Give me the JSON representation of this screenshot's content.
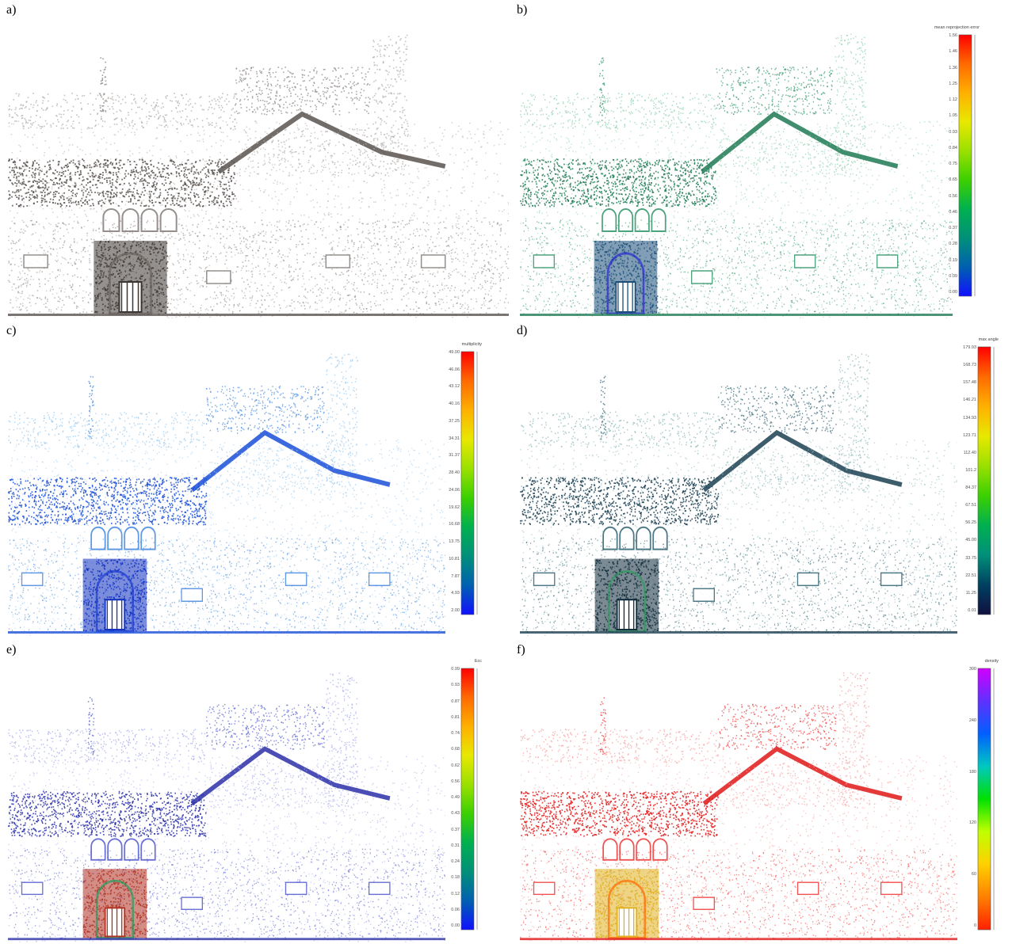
{
  "panels": [
    {
      "id": "a",
      "label": "a)",
      "colormap": "gray",
      "colorbar": null
    },
    {
      "id": "b",
      "label": "b)",
      "colormap": "viridis-like",
      "colorbar": {
        "title": "mean reprojection error",
        "ticks": [
          "1.56",
          "1.46",
          "1.36",
          "1.25",
          "1.12",
          "1.05",
          "0.93",
          "0.84",
          "0.75",
          "0.65",
          "0.56",
          "0.46",
          "0.37",
          "0.28",
          "0.19",
          "0.09",
          "0.00"
        ],
        "gradient": [
          "#ff0000",
          "#ff6a00",
          "#ffb000",
          "#e8e800",
          "#9be000",
          "#3cd000",
          "#00b050",
          "#00907a",
          "#0060b0",
          "#1010ff"
        ]
      }
    },
    {
      "id": "c",
      "label": "c)",
      "colormap": "blue",
      "colorbar": {
        "title": "multiplicity",
        "ticks": [
          "49.00",
          "46.06",
          "43.12",
          "40.16",
          "37.25",
          "34.31",
          "31.37",
          "28.40",
          "24.06",
          "19.62",
          "16.68",
          "13.75",
          "10.81",
          "7.87",
          "4.93",
          "2.00"
        ],
        "gradient": [
          "#ff0000",
          "#ff6a00",
          "#ffb000",
          "#e8e800",
          "#9be000",
          "#3cd000",
          "#00b050",
          "#00907a",
          "#0060b0",
          "#1010ff"
        ]
      }
    },
    {
      "id": "d",
      "label": "d)",
      "colormap": "darkgreen",
      "colorbar": {
        "title": "max angle",
        "ticks": [
          "179.93",
          "168.73",
          "157.48",
          "146.21",
          "134.93",
          "123.71",
          "112.40",
          "101.2",
          "84.37",
          "67.51",
          "56.25",
          "45.00",
          "33.75",
          "22.51",
          "11.25",
          "0.01"
        ],
        "gradient": [
          "#ff0000",
          "#ff6a00",
          "#ffb000",
          "#e8e800",
          "#9be000",
          "#3cd000",
          "#00b050",
          "#00907a",
          "#004060",
          "#101040"
        ]
      }
    },
    {
      "id": "e",
      "label": "e)",
      "colormap": "jet",
      "colorbar": {
        "title": "Ecc",
        "ticks": [
          "0.99",
          "0.93",
          "0.87",
          "0.81",
          "0.74",
          "0.68",
          "0.62",
          "0.56",
          "0.49",
          "0.43",
          "0.37",
          "0.31",
          "0.24",
          "0.18",
          "0.12",
          "0.06",
          "0.00"
        ],
        "gradient": [
          "#ff0000",
          "#ff6a00",
          "#ffb000",
          "#e8e800",
          "#9be000",
          "#3cd000",
          "#00b050",
          "#00907a",
          "#0060b0",
          "#1010ff"
        ]
      }
    },
    {
      "id": "f",
      "label": "f)",
      "colormap": "red",
      "colorbar": {
        "title": "density",
        "ticks": [
          "300",
          "240",
          "180",
          "120",
          "60",
          "0"
        ],
        "gradient": [
          "#d000ff",
          "#6030ff",
          "#0060ff",
          "#00c8c0",
          "#00e000",
          "#c0ff00",
          "#ffd000",
          "#ff8000",
          "#ff2000"
        ]
      }
    }
  ]
}
